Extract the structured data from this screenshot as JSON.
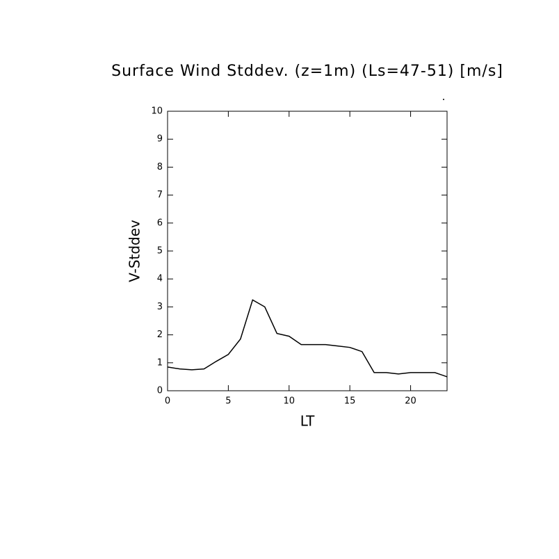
{
  "chart_data": {
    "type": "line",
    "title": "Surface Wind Stddev. (z=1m) (Ls=47-51) [m/s]",
    "x_label": "LT",
    "y_label": "V-Stddev",
    "x": [
      0,
      1,
      2,
      3,
      4,
      5,
      6,
      7,
      8,
      9,
      10,
      11,
      12,
      13,
      14,
      15,
      16,
      17,
      18,
      19,
      20,
      21,
      22,
      23
    ],
    "series": [
      {
        "name": "V-Stddev",
        "color": "#000000",
        "values": [
          0.85,
          0.78,
          0.75,
          0.78,
          1.05,
          1.3,
          1.85,
          3.25,
          3.0,
          2.05,
          1.95,
          1.65,
          1.65,
          1.65,
          1.6,
          1.55,
          1.4,
          0.65,
          0.65,
          0.6,
          0.65,
          0.65,
          0.65,
          0.5
        ]
      }
    ],
    "xlim": [
      0,
      23
    ],
    "xticks": [
      0,
      5,
      10,
      15,
      20
    ],
    "ylim": [
      0,
      10
    ],
    "yticks": [
      0,
      1,
      2,
      3,
      4,
      5,
      6,
      7,
      8,
      9,
      10
    ]
  }
}
